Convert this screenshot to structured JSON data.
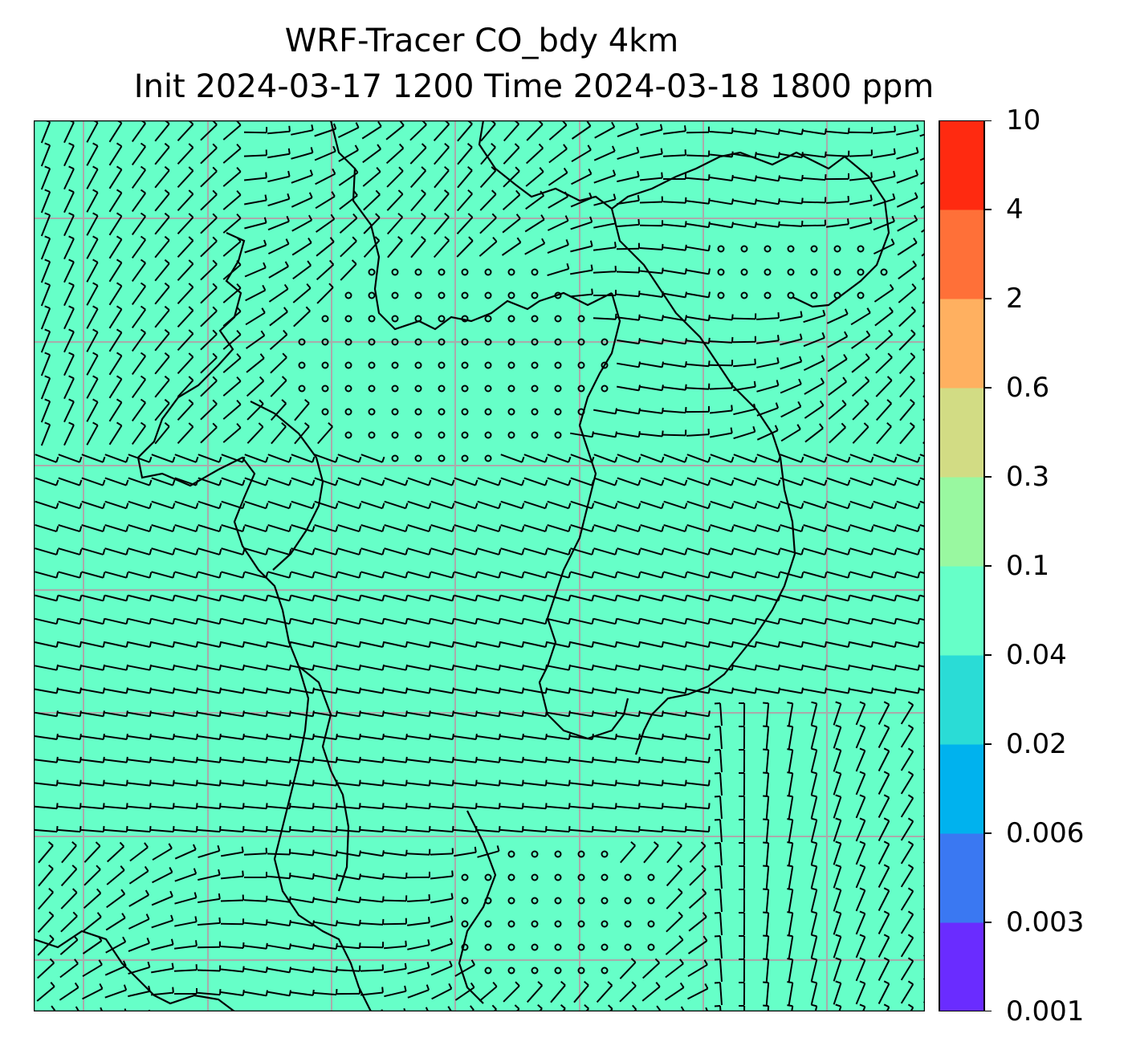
{
  "title": {
    "line1": "WRF-Tracer CO_bdy 4km",
    "line2": "Init 2024-03-17 1200 Time 2024-03-18 1800 ppm"
  },
  "map": {
    "fill_color": "#66ffc8",
    "grid_color": "#aaaaaa",
    "coast_color": "#000000",
    "barb_color": "#000000",
    "grid_columns": 7,
    "grid_rows": 8
  },
  "colorbar": {
    "levels": [
      "0.001",
      "0.003",
      "0.006",
      "0.02",
      "0.04",
      "0.1",
      "0.3",
      "0.6",
      "2",
      "4",
      "10"
    ],
    "colors": [
      "#6a2cff",
      "#3a78f2",
      "#00b2ee",
      "#2adcd6",
      "#66ffc8",
      "#99f8a0",
      "#d2dc84",
      "#ffb060",
      "#ff7038",
      "#ff2a10"
    ]
  }
}
